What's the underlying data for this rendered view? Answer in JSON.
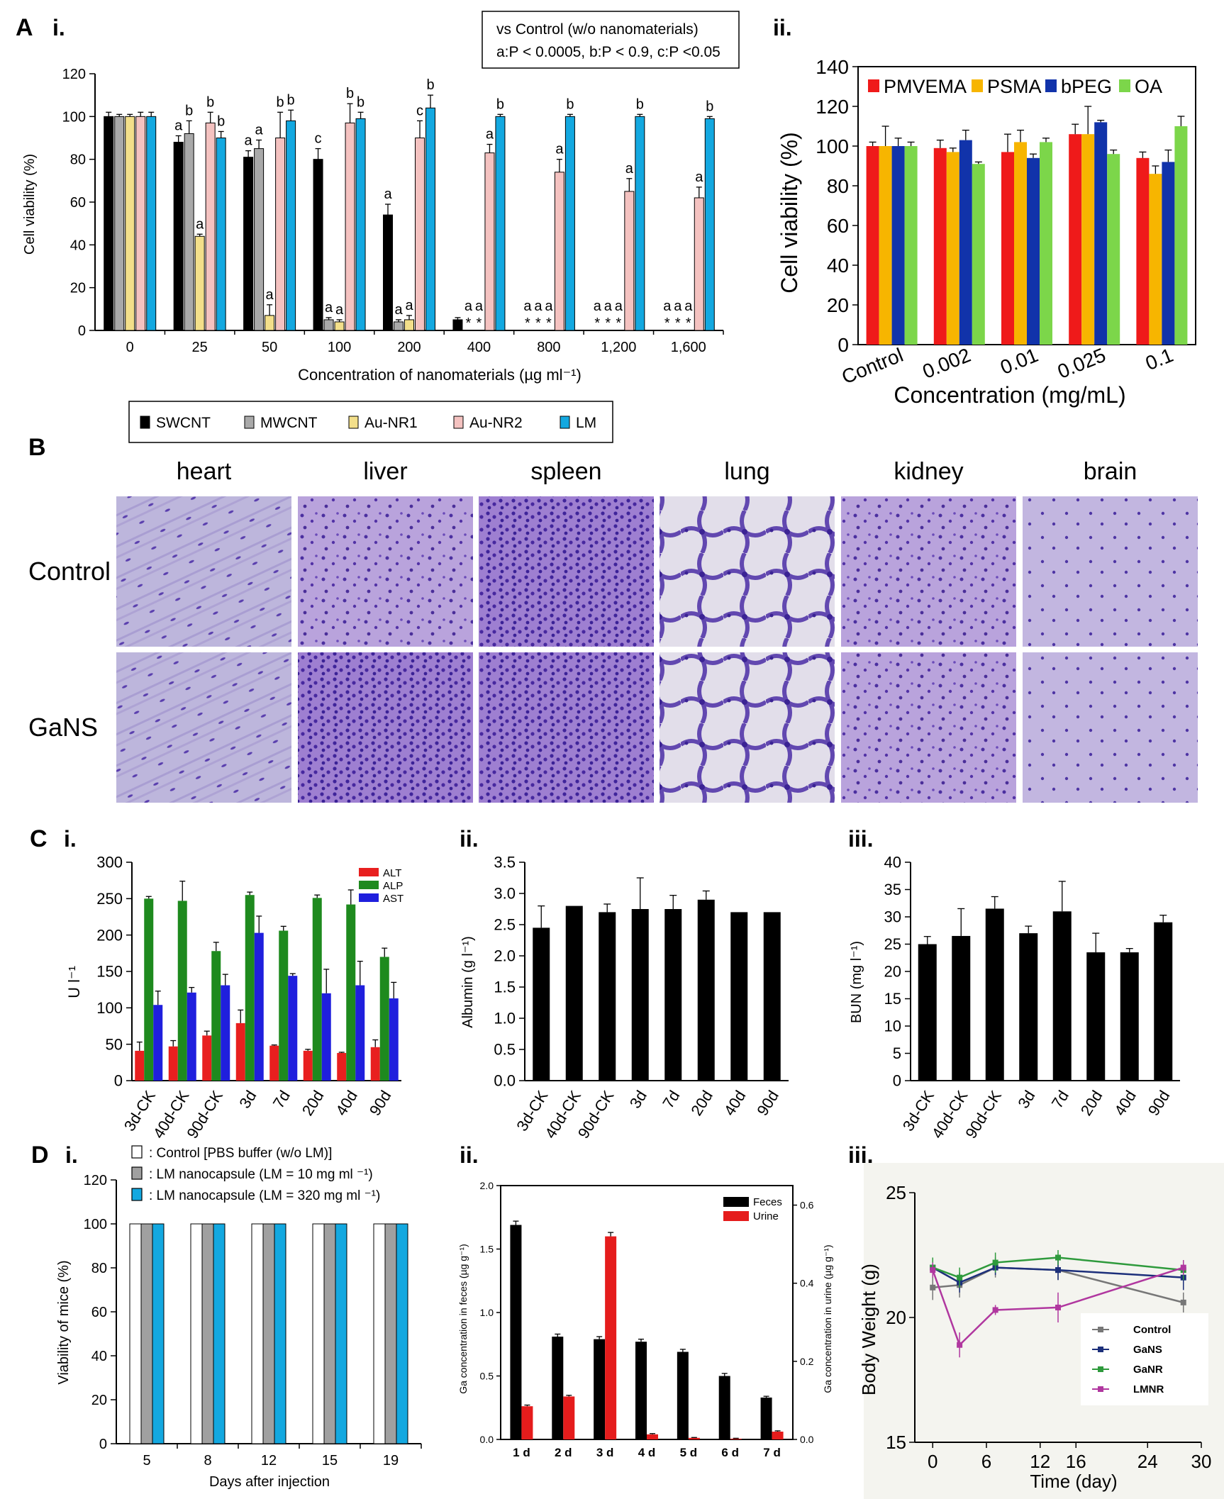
{
  "panels": {
    "A": {
      "letter": "A",
      "i": "i.",
      "ii": "ii."
    },
    "B": {
      "letter": "B"
    },
    "C": {
      "letter": "C",
      "i": "i.",
      "ii": "ii.",
      "iii": "iii."
    },
    "D": {
      "letter": "D",
      "i": "i.",
      "ii": "ii.",
      "iii": "iii."
    }
  },
  "histology": {
    "columns": [
      "heart",
      "liver",
      "spleen",
      "lung",
      "kidney",
      "brain"
    ],
    "rows": [
      "Control",
      "GaNS"
    ]
  },
  "colors": {
    "SWCNT": "#000000",
    "MWCNT": "#a9a9a9",
    "Au-NR1": "#f3df8a",
    "Au-NR2": "#f4c2c0",
    "LM": "#13a8e0",
    "PMVEMA": "#ef1a1a",
    "PSMA": "#f7b500",
    "bPEG": "#1133aa",
    "OA": "#7cd64a",
    "ALT": "#e81f1f",
    "ALP": "#1e8a1e",
    "AST": "#1f1fdd",
    "feces": "#000000",
    "urine": "#e51c1c",
    "Control": "#777777",
    "GaNS": "#1c2f7a",
    "GaNR": "#2e9a3c",
    "LMNR": "#b0379f"
  },
  "chart_data": [
    {
      "id": "Ai",
      "type": "bar",
      "title": "",
      "xlabel": "Concentration of nanomaterials (µg ml⁻¹)",
      "ylabel": "Cell viability (%)",
      "ylim": [
        0,
        120
      ],
      "yticks": [
        "0",
        "20",
        "40",
        "60",
        "80",
        "100",
        "120"
      ],
      "categories": [
        "0",
        "25",
        "50",
        "100",
        "200",
        "400",
        "800",
        "1,200",
        "1,600"
      ],
      "series": [
        {
          "name": "SWCNT",
          "values": [
            100,
            88,
            81,
            80,
            54,
            5,
            0,
            0,
            0
          ],
          "errors": [
            2,
            3,
            3,
            5,
            5,
            1,
            0,
            0,
            0
          ],
          "marks": [
            "",
            "a",
            "a",
            "c",
            "a",
            "",
            "a",
            "a",
            "a"
          ]
        },
        {
          "name": "MWCNT",
          "values": [
            100,
            92,
            85,
            5,
            4,
            0,
            0,
            0,
            0
          ],
          "errors": [
            1,
            6,
            4,
            1,
            1,
            0,
            0,
            0,
            0
          ],
          "marks": [
            "",
            "b",
            "a",
            "a",
            "a",
            "a",
            "a",
            "a",
            "a"
          ]
        },
        {
          "name": "Au-NR1",
          "values": [
            100,
            44,
            7,
            4,
            5,
            0,
            0,
            0,
            0
          ],
          "errors": [
            1,
            1,
            5,
            1,
            2,
            0,
            0,
            0,
            0
          ],
          "marks": [
            "",
            "a",
            "a",
            "a",
            "a",
            "a",
            "a",
            "a",
            "a"
          ]
        },
        {
          "name": "Au-NR2",
          "values": [
            100,
            97,
            90,
            97,
            90,
            83,
            74,
            65,
            62
          ],
          "errors": [
            2,
            5,
            12,
            9,
            8,
            4,
            6,
            6,
            5
          ],
          "marks": [
            "",
            "b",
            "b",
            "b",
            "c",
            "a",
            "a",
            "a",
            "a"
          ]
        },
        {
          "name": "LM",
          "values": [
            100,
            90,
            98,
            99,
            104,
            100,
            100,
            100,
            99
          ],
          "errors": [
            2,
            3,
            5,
            3,
            6,
            1,
            1,
            1,
            1
          ],
          "marks": [
            "",
            "b",
            "b",
            "b",
            "b",
            "b",
            "b",
            "b",
            "b"
          ]
        }
      ],
      "stars": {
        "description": "* marks on zero bars",
        "positions": [
          [
            5,
            1
          ],
          [
            5,
            2
          ],
          [
            6,
            0
          ],
          [
            6,
            1
          ],
          [
            6,
            2
          ],
          [
            7,
            0
          ],
          [
            7,
            1
          ],
          [
            7,
            2
          ],
          [
            8,
            0
          ],
          [
            8,
            1
          ],
          [
            8,
            2
          ]
        ]
      },
      "stats_box": {
        "line1": "vs Control (w/o nanomaterials)",
        "line2": "a:P < 0.0005, b:P < 0.9, c:P <0.05"
      },
      "legend": [
        "SWCNT",
        "MWCNT",
        "Au-NR1",
        "Au-NR2",
        "LM"
      ],
      "legend_position": "bottom"
    },
    {
      "id": "Aii",
      "type": "bar",
      "xlabel": "Concentration (mg/mL)",
      "ylabel": "Cell viability (%)",
      "ylim": [
        0,
        140
      ],
      "yticks": [
        "0",
        "20",
        "40",
        "60",
        "80",
        "100",
        "120",
        "140"
      ],
      "categories": [
        "Control",
        "0.002",
        "0.01",
        "0.025",
        "0.1"
      ],
      "series": [
        {
          "name": "PMVEMA",
          "values": [
            100,
            99,
            97,
            106,
            94
          ],
          "errors": [
            2,
            4,
            9,
            5,
            3
          ]
        },
        {
          "name": "PSMA",
          "values": [
            100,
            97,
            102,
            106,
            86
          ],
          "errors": [
            10,
            2,
            6,
            14,
            4
          ]
        },
        {
          "name": "bPEG",
          "values": [
            100,
            103,
            94,
            112,
            92
          ],
          "errors": [
            4,
            5,
            2,
            1,
            6
          ]
        },
        {
          "name": "OA",
          "values": [
            100,
            91,
            102,
            96,
            110
          ],
          "errors": [
            2,
            1,
            2,
            2,
            5
          ]
        }
      ],
      "legend": [
        "PMVEMA",
        "PSMA",
        "bPEG",
        "OA"
      ],
      "legend_position": "top"
    },
    {
      "id": "Ci",
      "type": "bar",
      "ylabel": "U l⁻¹",
      "ylim": [
        0,
        300
      ],
      "yticks": [
        "0",
        "50",
        "100",
        "150",
        "200",
        "250",
        "300"
      ],
      "categories": [
        "3d-CK",
        "40d-CK",
        "90d-CK",
        "3d",
        "7d",
        "20d",
        "40d",
        "90d"
      ],
      "series": [
        {
          "name": "ALT",
          "values": [
            41,
            47,
            62,
            79,
            48,
            41,
            38,
            46
          ],
          "errors": [
            12,
            8,
            6,
            18,
            1,
            2,
            1,
            10
          ]
        },
        {
          "name": "ALP",
          "values": [
            250,
            247,
            178,
            255,
            206,
            251,
            242,
            170
          ],
          "errors": [
            3,
            27,
            12,
            4,
            6,
            4,
            20,
            12
          ]
        },
        {
          "name": "AST",
          "values": [
            104,
            121,
            131,
            203,
            144,
            120,
            131,
            113
          ],
          "errors": [
            19,
            7,
            15,
            23,
            3,
            33,
            33,
            22
          ]
        }
      ],
      "legend": [
        "ALT",
        "ALP",
        "AST"
      ],
      "legend_position": "top-right"
    },
    {
      "id": "Cii",
      "type": "bar",
      "ylabel": "Albumin (g l⁻¹)",
      "ylim": [
        0,
        3.5
      ],
      "yticks": [
        "0.0",
        "0.5",
        "1.0",
        "1.5",
        "2.0",
        "2.5",
        "3.0",
        "3.5"
      ],
      "categories": [
        "3d-CK",
        "40d-CK",
        "90d-CK",
        "3d",
        "7d",
        "20d",
        "40d",
        "90d"
      ],
      "series": [
        {
          "name": "Albumin",
          "values": [
            2.45,
            2.8,
            2.7,
            2.75,
            2.75,
            2.9,
            2.7,
            2.7
          ],
          "errors": [
            0.35,
            0,
            0.13,
            0.5,
            0.22,
            0.14,
            0,
            0
          ]
        }
      ]
    },
    {
      "id": "Ciii",
      "type": "bar",
      "ylabel": "BUN (mg l⁻¹)",
      "ylim": [
        0,
        40
      ],
      "yticks": [
        "0",
        "5",
        "10",
        "15",
        "20",
        "25",
        "30",
        "35",
        "40"
      ],
      "categories": [
        "3d-CK",
        "40d-CK",
        "90d-CK",
        "3d",
        "7d",
        "20d",
        "40d",
        "90d"
      ],
      "series": [
        {
          "name": "BUN",
          "values": [
            25,
            26.5,
            31.5,
            27,
            31,
            23.5,
            23.5,
            29
          ],
          "errors": [
            1.4,
            5,
            2.2,
            1.3,
            5.5,
            3.5,
            0.7,
            1.3
          ]
        }
      ]
    },
    {
      "id": "Di",
      "type": "bar",
      "xlabel": "Days after injection",
      "ylabel": "Viability of mice (%)",
      "ylim": [
        0,
        120
      ],
      "yticks": [
        "0",
        "20",
        "40",
        "60",
        "80",
        "100",
        "120"
      ],
      "categories": [
        "5",
        "8",
        "12",
        "15",
        "19"
      ],
      "series": [
        {
          "name": ": Control [PBS buffer (w/o LM)]",
          "values": [
            100,
            100,
            100,
            100,
            100
          ]
        },
        {
          "name": ": LM nanocapsule (LM = 10 mg ml ⁻¹)",
          "values": [
            100,
            100,
            100,
            100,
            100
          ]
        },
        {
          "name": ": LM nanocapsule (LM = 320 mg ml ⁻¹)",
          "values": [
            100,
            100,
            100,
            100,
            100
          ]
        }
      ],
      "legend_position": "top"
    },
    {
      "id": "Dii",
      "type": "bar",
      "ylabel": "Ga concentration in feces (µg g⁻¹)",
      "ylabel_right": "Ga concentration in urine (µg g⁻¹)",
      "ylim": [
        0,
        2.0
      ],
      "ylim_right": [
        0,
        0.65
      ],
      "yticks": [
        "0.0",
        "0.5",
        "1.0",
        "1.5",
        "2.0"
      ],
      "yticks_right": [
        "0.0",
        "0.2",
        "0.4",
        "0.6"
      ],
      "categories": [
        "1 d",
        "2 d",
        "3 d",
        "4 d",
        "5 d",
        "6 d",
        "7 d"
      ],
      "series": [
        {
          "name": "Feces",
          "axis": "left",
          "values": [
            1.69,
            0.81,
            0.79,
            0.77,
            0.69,
            0.5,
            0.33
          ],
          "errors": [
            0.03,
            0.02,
            0.02,
            0.02,
            0.02,
            0.02,
            0.01
          ]
        },
        {
          "name": "Urine",
          "axis": "right",
          "values": [
            0.085,
            0.11,
            0.52,
            0.013,
            0.004,
            0.002,
            0.02
          ],
          "errors": [
            0.003,
            0.003,
            0.01,
            0.002,
            0.001,
            0.001,
            0.002
          ]
        }
      ],
      "legend": [
        "Feces",
        "Urine"
      ],
      "legend_position": "top-right"
    },
    {
      "id": "Diii",
      "type": "line",
      "xlabel": "Time (day)",
      "ylabel": "Body Weight (g)",
      "xlim": [
        -2,
        30
      ],
      "ylim": [
        15,
        25
      ],
      "xticks": [
        0,
        6,
        12,
        16,
        24,
        30
      ],
      "yticks": [
        15,
        20,
        25
      ],
      "series": [
        {
          "name": "Control",
          "x": [
            0,
            3,
            7,
            14,
            28
          ],
          "y": [
            21.2,
            21.3,
            22.0,
            21.9,
            20.6
          ],
          "errors": [
            0.5,
            0.5,
            0.4,
            0.4,
            0.4
          ]
        },
        {
          "name": "GaNS",
          "x": [
            0,
            3,
            7,
            14,
            28
          ],
          "y": [
            22.0,
            21.4,
            22.0,
            21.9,
            21.6
          ],
          "errors": [
            0.4,
            0.4,
            0.3,
            0.4,
            0.5
          ]
        },
        {
          "name": "GaNR",
          "x": [
            0,
            3,
            7,
            14,
            28
          ],
          "y": [
            22.0,
            21.6,
            22.2,
            22.4,
            21.9
          ],
          "errors": [
            0.4,
            0.4,
            0.4,
            0.3,
            0.4
          ]
        },
        {
          "name": "LMNR",
          "x": [
            0,
            3,
            7,
            14,
            28
          ],
          "y": [
            21.9,
            18.9,
            20.3,
            20.4,
            22.0
          ],
          "errors": [
            0.3,
            0.5,
            0.2,
            0.6,
            0.3
          ]
        }
      ],
      "legend": [
        "Control",
        "GaNS",
        "GaNR",
        "LMNR"
      ],
      "legend_position": "bottom-right"
    }
  ]
}
